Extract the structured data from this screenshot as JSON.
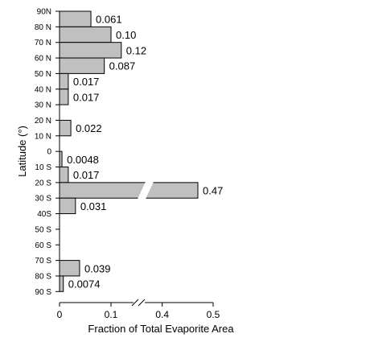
{
  "chart_data": {
    "type": "bar",
    "orientation": "horizontal",
    "categories": [
      "90N",
      "80 N",
      "70 N",
      "60 N",
      "50 N",
      "40 N",
      "30 N",
      "20 N",
      "10 N",
      "0",
      "10 S",
      "20 S",
      "30 S",
      "40S",
      "50 S",
      "60 S",
      "70 S",
      "80 S",
      "90 S"
    ],
    "bars": [
      {
        "from": "90N",
        "to": "80 N",
        "value": 0.061,
        "label": "0.061"
      },
      {
        "from": "80 N",
        "to": "70 N",
        "value": 0.1,
        "label": "0.10"
      },
      {
        "from": "70 N",
        "to": "60 N",
        "value": 0.12,
        "label": "0.12"
      },
      {
        "from": "60 N",
        "to": "50 N",
        "value": 0.087,
        "label": "0.087"
      },
      {
        "from": "50 N",
        "to": "40 N",
        "value": 0.017,
        "label": "0.017"
      },
      {
        "from": "40 N",
        "to": "30 N",
        "value": 0.017,
        "label": "0.017"
      },
      {
        "from": "30 N",
        "to": "20 N",
        "value": 0,
        "label": ""
      },
      {
        "from": "20 N",
        "to": "10 N",
        "value": 0.022,
        "label": "0.022"
      },
      {
        "from": "10 N",
        "to": "0",
        "value": 0,
        "label": ""
      },
      {
        "from": "0",
        "to": "10 S",
        "value": 0.0048,
        "label": "0.0048"
      },
      {
        "from": "10 S",
        "to": "20 S",
        "value": 0.017,
        "label": "0.017"
      },
      {
        "from": "20 S",
        "to": "30 S",
        "value": 0.47,
        "label": "0.47",
        "broken": true
      },
      {
        "from": "30 S",
        "to": "40S",
        "value": 0.031,
        "label": "0.031"
      },
      {
        "from": "40S",
        "to": "50 S",
        "value": 0,
        "label": ""
      },
      {
        "from": "50 S",
        "to": "60 S",
        "value": 0,
        "label": ""
      },
      {
        "from": "60 S",
        "to": "70 S",
        "value": 0,
        "label": ""
      },
      {
        "from": "70 S",
        "to": "80 S",
        "value": 0.039,
        "label": "0.039"
      },
      {
        "from": "80 S",
        "to": "90 S",
        "value": 0.0074,
        "label": "0.0074"
      }
    ],
    "xlabel": "Fraction of Total Evaporite Area",
    "ylabel": "Latitude (°)",
    "x_ticks": [
      {
        "value": 0,
        "label": "0"
      },
      {
        "value": 0.1,
        "label": "0.1"
      },
      {
        "value": 0.4,
        "label": "0.4"
      },
      {
        "value": 0.5,
        "label": "0.5"
      }
    ],
    "x_axis_break": [
      0.15,
      0.35
    ],
    "xlim": [
      0,
      0.5
    ],
    "grid": false,
    "bar_color": "#c0c0c0"
  }
}
